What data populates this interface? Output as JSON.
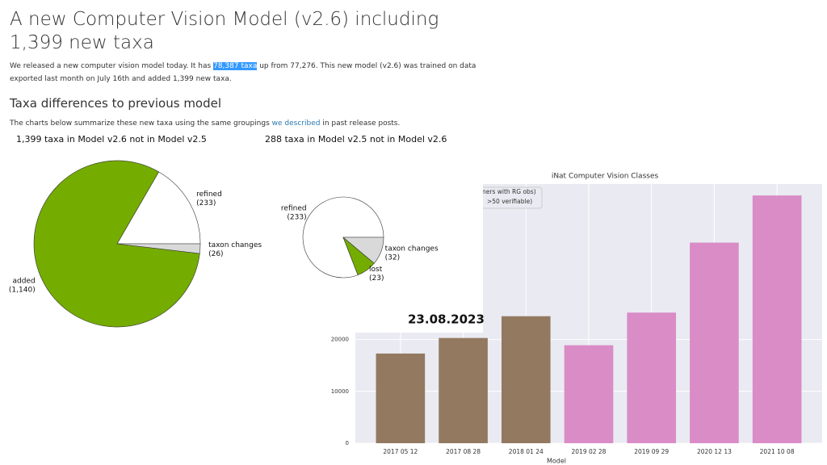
{
  "article": {
    "title": "A new Computer Vision Model (v2.6) including 1,399 new taxa",
    "intro_before": "We released a new computer vision model today. It has ",
    "intro_highlight": "78,387 taxa",
    "intro_after": " up from 77,276. This new model (v2.6) was trained on data exported last month on July 16th and added 1,399 new taxa.",
    "subheading": "Taxa differences to previous model",
    "charts_before": "The charts below summarize these new taxa using the same groupings ",
    "charts_link": "we described",
    "charts_after": " in past release posts.",
    "overlay_date": "23.08.2023"
  },
  "chart_data": [
    {
      "type": "pie",
      "title": "1,399 taxa in Model v2.6 not in Model v2.5",
      "categories": [
        "refined",
        "added",
        "taxon changes"
      ],
      "values": [
        233,
        1140,
        26
      ],
      "value_labels": [
        "(233)",
        "(1,140)",
        "(26)"
      ],
      "colors": [
        "#ffffff",
        "#74ac00",
        "#d9d9d9"
      ]
    },
    {
      "type": "pie",
      "title": "288 taxa in Model v2.5 not in Model v2.6",
      "categories": [
        "refined",
        "lost",
        "taxon changes"
      ],
      "values": [
        233,
        23,
        32
      ],
      "value_labels": [
        "(233)",
        "(23)",
        "(32)"
      ],
      "colors": [
        "#ffffff",
        "#74ac00",
        "#d9d9d9"
      ]
    },
    {
      "type": "bar",
      "title": "iNat Computer Vision Classes",
      "x_label": "Model",
      "categories": [
        "2017 05 12",
        "2017 08 28",
        "2018 01 24",
        "2019 02 28",
        "2019 09 29",
        "2020 12 13",
        "2021 10 08"
      ],
      "values": [
        17300,
        20300,
        24500,
        18900,
        25200,
        38700,
        47800
      ],
      "colors": [
        "#927960",
        "#927960",
        "#927960",
        "#d98cc6",
        "#d98cc6",
        "#d98cc6",
        "#d98cc6"
      ],
      "legend": [
        "ners with RG obs)",
        ">50 verifiable)"
      ],
      "ylim": [
        0,
        50000
      ],
      "yticks": [
        0,
        10000,
        20000
      ],
      "grid": true
    }
  ]
}
